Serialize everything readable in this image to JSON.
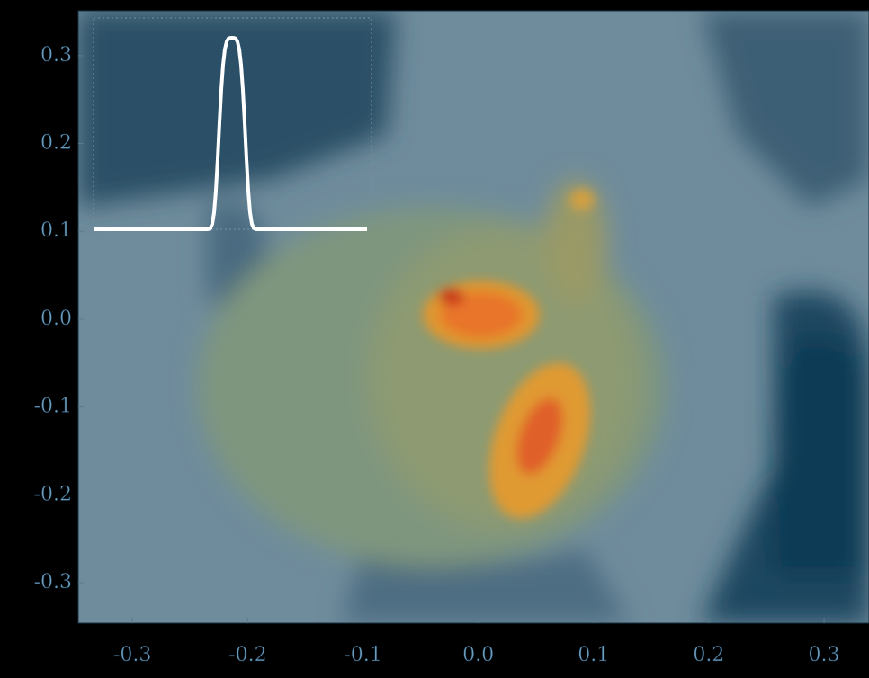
{
  "chart_data": {
    "type": "contour",
    "xlim": [
      -0.347,
      0.339
    ],
    "ylim": [
      -0.346,
      0.351
    ],
    "xticks": [
      -0.3,
      -0.2,
      -0.1,
      {
        "value": 0,
        "label": "0.0"
      },
      0.1,
      0.2,
      0.3
    ],
    "yticks": [
      0.3,
      0.2,
      0.1,
      {
        "value": 0,
        "label": "0.0"
      },
      -0.1,
      -0.2,
      -0.3
    ]
  }
}
